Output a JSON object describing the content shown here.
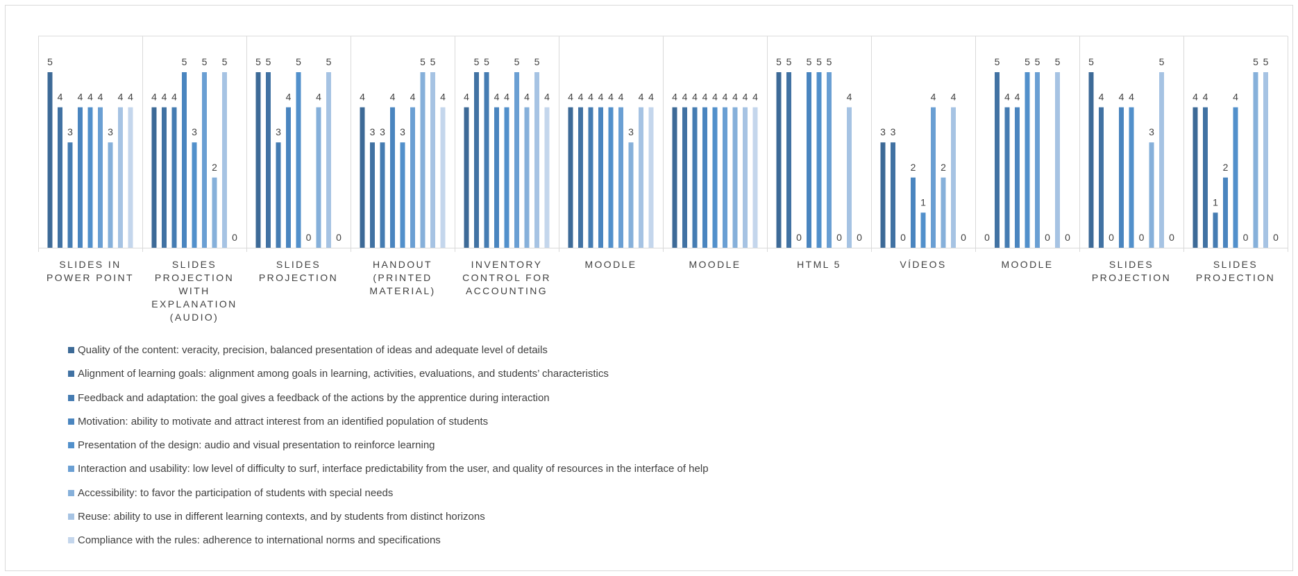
{
  "chart_data": {
    "type": "bar",
    "title": "",
    "xlabel": "",
    "ylabel": "",
    "ylim": [
      0,
      5
    ],
    "grid": false,
    "legend_position": "bottom-left",
    "categories": [
      [
        "SLIDES IN",
        "POWER POINT"
      ],
      [
        "SLIDES",
        "PROJECTION",
        "WITH",
        "EXPLANATION",
        "(AUDIO)"
      ],
      [
        "SLIDES",
        "PROJECTION"
      ],
      [
        "HANDOUT",
        "(PRINTED",
        "MATERIAL)"
      ],
      [
        "INVENTORY",
        "CONTROL FOR",
        "ACCOUNTING"
      ],
      [
        "MOODLE"
      ],
      [
        "MOODLE"
      ],
      [
        "HTML 5"
      ],
      [
        "VÍDEOS"
      ],
      [
        "MOODLE"
      ],
      [
        "SLIDES",
        "PROJECTION"
      ],
      [
        "SLIDES",
        "PROJECTION"
      ]
    ],
    "series": [
      {
        "name": "Quality of the content: veracity, precision, balanced presentation of ideas and adequate level of details",
        "color": "#3d6a97",
        "values": [
          5,
          4,
          5,
          4,
          4,
          4,
          4,
          5,
          3,
          0,
          5,
          4
        ]
      },
      {
        "name": "Alignment of learning goals: alignment among goals in learning, activities, evaluations, and students’ characteristics",
        "color": "#4172a3",
        "values": [
          4,
          4,
          5,
          3,
          5,
          4,
          4,
          5,
          3,
          5,
          4,
          4
        ]
      },
      {
        "name": "Feedback and adaptation: the goal gives a feedback of the actions by the apprentice during interaction",
        "color": "#457cb2",
        "values": [
          3,
          4,
          3,
          3,
          5,
          4,
          4,
          0,
          0,
          4,
          0,
          1
        ]
      },
      {
        "name": "Motivation: ability to motivate and attract interest from an identified population of students",
        "color": "#4a85bf",
        "values": [
          4,
          5,
          4,
          4,
          4,
          4,
          4,
          5,
          2,
          4,
          4,
          2
        ]
      },
      {
        "name": "Presentation of the design: audio and visual presentation to reinforce learning",
        "color": "#5290cb",
        "values": [
          4,
          3,
          5,
          3,
          4,
          4,
          4,
          5,
          1,
          5,
          4,
          4
        ]
      },
      {
        "name": "Interaction and usability: low level of difficulty to surf, interface predictability from the user, and quality of resources in the interface of help",
        "color": "#6a9fd3",
        "values": [
          4,
          5,
          0,
          4,
          5,
          4,
          4,
          5,
          4,
          5,
          0,
          0
        ]
      },
      {
        "name": "Accessibility: to favor the participation of students with special needs",
        "color": "#86b0da",
        "values": [
          3,
          2,
          4,
          5,
          4,
          3,
          4,
          0,
          2,
          0,
          3,
          5
        ]
      },
      {
        "name": "Reuse: ability to use in different learning contexts, and by students from distinct horizons",
        "color": "#a6c3e3",
        "values": [
          4,
          5,
          5,
          5,
          5,
          4,
          4,
          4,
          4,
          5,
          5,
          5
        ]
      },
      {
        "name": "Compliance with the rules: adherence to international norms and specifications",
        "color": "#c4d6ec",
        "values": [
          4,
          0,
          0,
          4,
          4,
          4,
          4,
          0,
          0,
          0,
          0,
          0
        ]
      }
    ]
  }
}
